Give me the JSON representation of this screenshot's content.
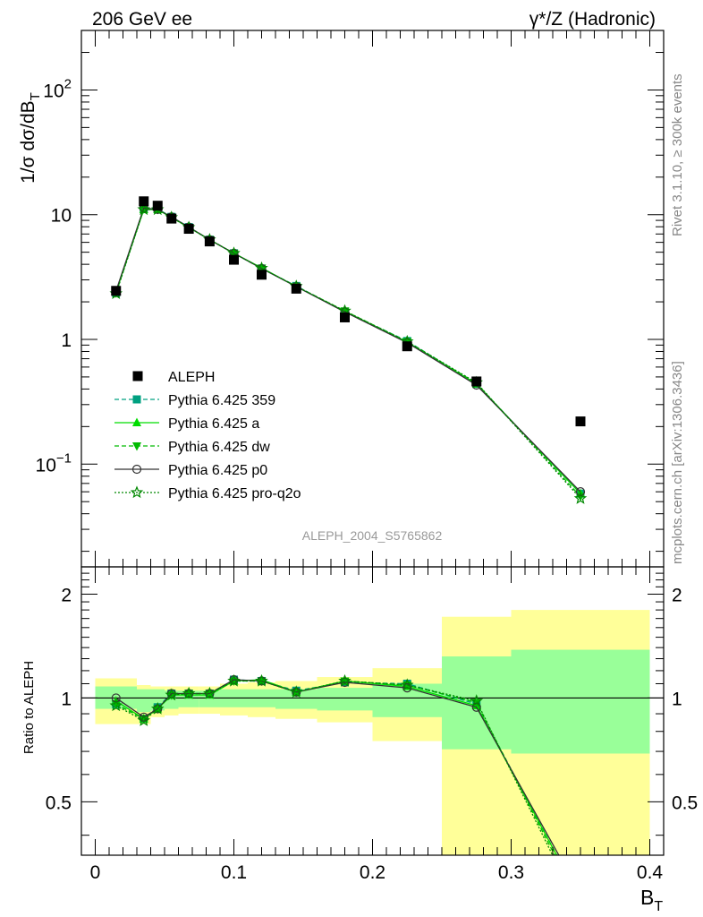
{
  "header": {
    "left": "206 GeV ee",
    "right": "γ*/Z (Hadronic)"
  },
  "side_text": {
    "rivet": "Rivet 3.1.10, ≥ 300k events",
    "mcplots": "mcplots.cern.ch [arXiv:1306.3436]"
  },
  "watermark": "ALEPH_2004_S5765862",
  "axes": {
    "ylabel_main": "1/σ  dσ/dB",
    "ylabel_main_sub": "T",
    "ylabel_ratio": "Ratio to ALEPH",
    "xlabel": "B",
    "xlabel_sub": "T",
    "main_ticks": [
      {
        "value": 100,
        "label": "10",
        "exp": "2"
      },
      {
        "value": 10,
        "label": "10",
        "exp": ""
      },
      {
        "value": 1,
        "label": "1",
        "exp": ""
      },
      {
        "value": 0.1,
        "label": "10",
        "exp": "−1"
      }
    ],
    "ratio_ticks": [
      "0.5",
      "1",
      "2"
    ],
    "x_ticks": [
      "0",
      "0.1",
      "0.2",
      "0.3",
      "0.4"
    ]
  },
  "colors": {
    "data": "#000000",
    "band_outer": "#ffff99",
    "band_inner": "#99ff99",
    "p359": "#00a080",
    "pa": "#00dd00",
    "pdw": "#00bb00",
    "pp0": "#333333",
    "pq2o": "#008800"
  },
  "chart_data": {
    "type": "line",
    "xlim": [
      -0.01,
      0.41
    ],
    "ylim": [
      0.015,
      300
    ],
    "yscale": "log",
    "ratio_ylim": [
      0.35,
      2.4
    ],
    "ratio_yscale": "log",
    "legend_position": "lower-left",
    "data": {
      "name": "ALEPH",
      "x": [
        0.015,
        0.035,
        0.045,
        0.055,
        0.0675,
        0.0825,
        0.1,
        0.12,
        0.145,
        0.18,
        0.225,
        0.275,
        0.35
      ],
      "y": [
        2.45,
        12.8,
        11.8,
        9.3,
        7.7,
        6.1,
        4.35,
        3.3,
        2.55,
        1.5,
        0.88,
        0.46,
        0.22
      ]
    },
    "bins": [
      {
        "x0": 0.0,
        "x1": 0.03,
        "in_lo": 0.93,
        "in_hi": 1.08,
        "out_lo": 0.84,
        "out_hi": 1.14
      },
      {
        "x0": 0.03,
        "x1": 0.04,
        "in_lo": 0.91,
        "in_hi": 1.06,
        "out_lo": 0.84,
        "out_hi": 1.09
      },
      {
        "x0": 0.04,
        "x1": 0.05,
        "in_lo": 0.92,
        "in_hi": 1.06,
        "out_lo": 0.88,
        "out_hi": 1.08
      },
      {
        "x0": 0.05,
        "x1": 0.06,
        "in_lo": 0.93,
        "in_hi": 1.05,
        "out_lo": 0.89,
        "out_hi": 1.08
      },
      {
        "x0": 0.06,
        "x1": 0.075,
        "in_lo": 0.94,
        "in_hi": 1.05,
        "out_lo": 0.9,
        "out_hi": 1.08
      },
      {
        "x0": 0.075,
        "x1": 0.09,
        "in_lo": 0.94,
        "in_hi": 1.05,
        "out_lo": 0.9,
        "out_hi": 1.08
      },
      {
        "x0": 0.09,
        "x1": 0.11,
        "in_lo": 0.94,
        "in_hi": 1.06,
        "out_lo": 0.89,
        "out_hi": 1.1
      },
      {
        "x0": 0.11,
        "x1": 0.13,
        "in_lo": 0.94,
        "in_hi": 1.06,
        "out_lo": 0.88,
        "out_hi": 1.11
      },
      {
        "x0": 0.13,
        "x1": 0.16,
        "in_lo": 0.93,
        "in_hi": 1.06,
        "out_lo": 0.87,
        "out_hi": 1.12
      },
      {
        "x0": 0.16,
        "x1": 0.2,
        "in_lo": 0.92,
        "in_hi": 1.07,
        "out_lo": 0.85,
        "out_hi": 1.15
      },
      {
        "x0": 0.2,
        "x1": 0.25,
        "in_lo": 0.88,
        "in_hi": 1.1,
        "out_lo": 0.75,
        "out_hi": 1.22
      },
      {
        "x0": 0.25,
        "x1": 0.3,
        "in_lo": 0.71,
        "in_hi": 1.32,
        "out_lo": 0.33,
        "out_hi": 1.72
      },
      {
        "x0": 0.3,
        "x1": 0.4,
        "in_lo": 0.69,
        "in_hi": 1.38,
        "out_lo": 0.33,
        "out_hi": 1.8
      }
    ],
    "series": [
      {
        "name": "Pythia 6.425 359",
        "key": "p359",
        "dash": "5,3",
        "marker": "square",
        "y": [
          2.36,
          11.2,
          11.1,
          9.6,
          7.95,
          6.3,
          4.9,
          3.7,
          2.68,
          1.67,
          0.97,
          0.44,
          0.058
        ],
        "ratio": [
          0.96,
          0.87,
          0.94,
          1.03,
          1.03,
          1.03,
          1.13,
          1.12,
          1.05,
          1.11,
          1.1,
          0.96,
          0.26
        ]
      },
      {
        "name": "Pythia 6.425 a",
        "key": "pa",
        "dash": "",
        "marker": "triangle-up",
        "y": [
          2.4,
          11.0,
          11.0,
          9.5,
          7.9,
          6.3,
          4.9,
          3.75,
          2.65,
          1.68,
          0.95,
          0.44,
          0.058
        ],
        "ratio": [
          0.98,
          0.87,
          0.93,
          1.02,
          1.02,
          1.02,
          1.12,
          1.13,
          1.04,
          1.12,
          1.08,
          0.95,
          0.26
        ]
      },
      {
        "name": "Pythia 6.425 dw",
        "key": "pdw",
        "dash": "5,3",
        "marker": "triangle-down",
        "y": [
          2.35,
          11.1,
          11.0,
          9.5,
          7.9,
          6.3,
          4.9,
          3.72,
          2.66,
          1.69,
          0.96,
          0.445,
          0.055
        ],
        "ratio": [
          0.96,
          0.87,
          0.93,
          1.02,
          1.03,
          1.03,
          1.12,
          1.12,
          1.04,
          1.12,
          1.09,
          0.97,
          0.25
        ]
      },
      {
        "name": "Pythia 6.425 p0",
        "key": "pp0",
        "dash": "",
        "marker": "circle-open",
        "y": [
          2.45,
          11.3,
          11.0,
          9.6,
          7.95,
          6.3,
          4.9,
          3.7,
          2.65,
          1.66,
          0.94,
          0.43,
          0.06
        ],
        "ratio": [
          1.0,
          0.88,
          0.93,
          1.03,
          1.03,
          1.03,
          1.13,
          1.12,
          1.04,
          1.11,
          1.07,
          0.94,
          0.27
        ]
      },
      {
        "name": "Pythia 6.425 pro-q2o",
        "key": "pq2o",
        "dash": "2,2",
        "marker": "star-open",
        "y": [
          2.33,
          11.0,
          11.0,
          9.5,
          7.9,
          6.3,
          4.9,
          3.72,
          2.66,
          1.69,
          0.96,
          0.45,
          0.053
        ],
        "ratio": [
          0.95,
          0.86,
          0.93,
          1.02,
          1.03,
          1.03,
          1.12,
          1.12,
          1.04,
          1.12,
          1.09,
          0.98,
          0.24
        ]
      }
    ]
  }
}
